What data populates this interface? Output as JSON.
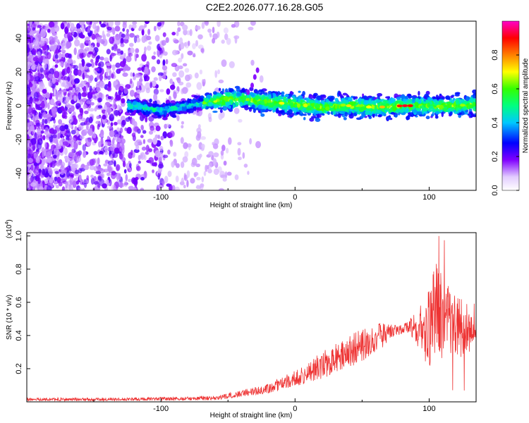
{
  "title": "C2E2.2026.077.16.28.G05",
  "chart_data": [
    {
      "type": "heatmap",
      "name": "spectrogram",
      "xlabel": "Height of straight line (km)",
      "ylabel": "Frequency (Hz)",
      "xlim": [
        -200,
        135
      ],
      "ylim": [
        -50,
        50
      ],
      "xticks": [
        -100,
        0,
        100
      ],
      "xtick_labels": [
        "-100",
        "0",
        "100"
      ],
      "yticks": [
        -40,
        -20,
        0,
        20,
        40
      ],
      "ytick_labels": [
        "-40",
        "-20",
        "0",
        "20",
        "40"
      ],
      "colorbar": {
        "label": "Normalized spectral amplitude",
        "range": [
          0,
          1
        ],
        "ticks": [
          0,
          0.2,
          0.4,
          0.6,
          0.8
        ],
        "tick_labels": [
          "0.0",
          "0.2",
          "0.4",
          "0.6",
          "0.8"
        ]
      },
      "signal_trace": {
        "x": [
          -120,
          -100,
          -80,
          -60,
          -40,
          -20,
          0,
          20,
          40,
          60,
          80,
          100,
          120,
          135
        ],
        "frequency": [
          0,
          -3,
          0,
          3,
          4,
          2,
          1,
          -1,
          0,
          -1,
          0,
          0,
          0,
          1
        ]
      }
    },
    {
      "type": "line",
      "name": "snr",
      "xlabel": "Height of straight line (km)",
      "ylabel": "SNR (10 * v/v)",
      "multiplier": {
        "base": "(x10",
        "exponent": "4",
        "close": ")"
      },
      "xlim": [
        -200,
        135
      ],
      "ylim": [
        0,
        1.02
      ],
      "xticks": [
        -100,
        0,
        100
      ],
      "xtick_labels": [
        "-100",
        "0",
        "100"
      ],
      "yticks": [
        0.2,
        0.4,
        0.6,
        0.8,
        1.0
      ],
      "ytick_labels": [
        "0.2",
        "0.4",
        "0.6",
        "0.8",
        "1.0"
      ],
      "color": "#ee3333",
      "envelope": {
        "x": [
          -200,
          -150,
          -100,
          -60,
          -40,
          -20,
          0,
          20,
          40,
          60,
          70,
          80,
          85,
          90,
          95,
          100,
          105,
          110,
          115,
          120,
          125,
          130,
          135
        ],
        "mean": [
          0.015,
          0.015,
          0.018,
          0.022,
          0.05,
          0.08,
          0.14,
          0.22,
          0.3,
          0.38,
          0.42,
          0.44,
          0.45,
          0.45,
          0.44,
          0.42,
          0.55,
          0.52,
          0.48,
          0.46,
          0.45,
          0.45,
          0.47
        ],
        "amplitude": [
          0.01,
          0.01,
          0.01,
          0.012,
          0.02,
          0.03,
          0.05,
          0.08,
          0.1,
          0.1,
          0.05,
          0.03,
          0.04,
          0.1,
          0.18,
          0.25,
          0.3,
          0.28,
          0.22,
          0.2,
          0.18,
          0.15,
          0.12
        ]
      }
    }
  ]
}
